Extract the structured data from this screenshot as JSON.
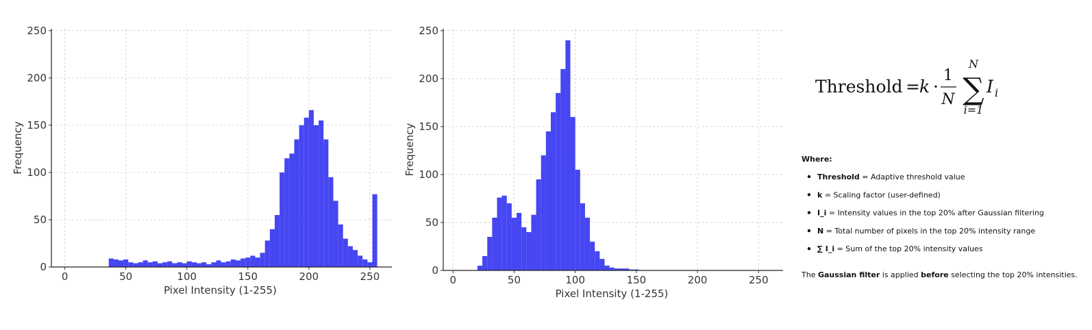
{
  "chart_data": [
    {
      "type": "histogram",
      "xlabel": "Pixel Intensity (1-255)",
      "ylabel": "Frequency",
      "bins": [
        36,
        40,
        44,
        48,
        52,
        56,
        60,
        64,
        68,
        72,
        76,
        80,
        84,
        88,
        92,
        96,
        100,
        104,
        108,
        112,
        116,
        120,
        124,
        128,
        132,
        136,
        140,
        144,
        148,
        152,
        156,
        160,
        164,
        168,
        172,
        176,
        180,
        184,
        188,
        192,
        196,
        200,
        204,
        208,
        212,
        216,
        220,
        224,
        228,
        232,
        236,
        240,
        244,
        248,
        252,
        256
      ],
      "values": [
        9,
        8,
        7,
        8,
        5,
        4,
        5,
        7,
        5,
        6,
        4,
        5,
        6,
        4,
        5,
        4,
        6,
        5,
        4,
        5,
        3,
        5,
        7,
        5,
        6,
        8,
        7,
        9,
        10,
        12,
        10,
        15,
        28,
        40,
        55,
        100,
        115,
        120,
        135,
        150,
        158,
        166,
        150,
        155,
        135,
        95,
        70,
        45,
        30,
        22,
        18,
        12,
        8,
        5,
        77
      ],
      "color": "#4646f2",
      "xlim": [
        -11,
        268
      ],
      "ylim": [
        0,
        252
      ],
      "xticks": [
        0,
        50,
        100,
        150,
        200,
        250
      ],
      "yticks": [
        0,
        50,
        100,
        150,
        200,
        250
      ],
      "grid": true
    },
    {
      "type": "histogram",
      "xlabel": "Pixel Intensity (1-255)",
      "ylabel": "Frequency",
      "bins": [
        20,
        24,
        28,
        32,
        36,
        40,
        44,
        48,
        52,
        56,
        60,
        64,
        68,
        72,
        76,
        80,
        84,
        88,
        92,
        96,
        100,
        104,
        108,
        112,
        116,
        120,
        124,
        128,
        132,
        136,
        140,
        144,
        148,
        152
      ],
      "values": [
        5,
        15,
        35,
        55,
        76,
        78,
        70,
        55,
        60,
        45,
        40,
        58,
        95,
        120,
        145,
        165,
        185,
        210,
        240,
        160,
        105,
        70,
        55,
        30,
        20,
        12,
        5,
        3,
        2,
        2,
        2,
        1,
        1
      ],
      "color": "#4646f2",
      "xlim": [
        -8,
        270
      ],
      "ylim": [
        0,
        252
      ],
      "xticks": [
        0,
        50,
        100,
        150,
        200,
        250
      ],
      "yticks": [
        0,
        50,
        100,
        150,
        200,
        250
      ],
      "grid": true
    }
  ],
  "formula": {
    "lhs": "Threshold",
    "equals": "=",
    "k": "k",
    "dot": "·",
    "numerator": "1",
    "denominator": "N",
    "sum": "∑",
    "sum_upper": "N",
    "sum_lower": "i=1",
    "term": "I",
    "term_sub": "i"
  },
  "notes": {
    "heading": "Where:",
    "items": [
      {
        "term": "Threshold",
        "text": " = Adaptive threshold value"
      },
      {
        "term": "k",
        "text": " = Scaling factor (user-defined)"
      },
      {
        "term": "I_i",
        "text": " = Intensity values in the top 20% after Gaussian filtering"
      },
      {
        "term": "N",
        "text": " = Total number of pixels in the top 20% intensity range"
      },
      {
        "term": "∑ I_i",
        "text": " = Sum of the top 20% intensity values"
      }
    ],
    "footer": [
      "The ",
      "Gaussian filter",
      " is applied ",
      "before",
      " selecting the top 20% intensities."
    ]
  }
}
